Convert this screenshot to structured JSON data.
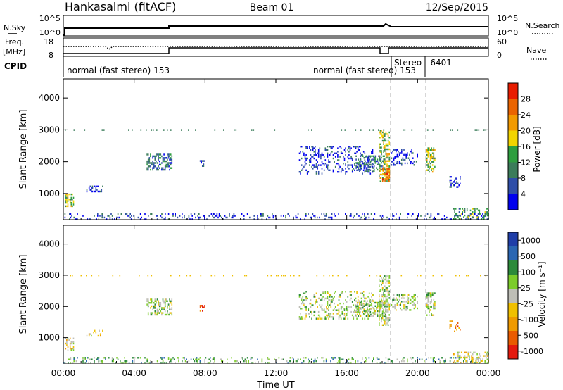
{
  "header": {
    "station": "Hankasalmi (fitACF)",
    "beam": "Beam 01",
    "date": "12/Sep/2015"
  },
  "status_panels": {
    "nsky_label": "N.Sky",
    "nsearch_label": "N.Search",
    "noise_ticks": [
      "10^5",
      "10^0"
    ],
    "freq_label_1": "Freq.",
    "freq_label_2": "[MHz]",
    "freq_ticks": [
      "18",
      "8"
    ],
    "nave_label": "Nave",
    "nave_ticks": [
      "60",
      "0"
    ],
    "cpid_label": "CPID",
    "cpid_segments": [
      {
        "text": "normal (fast stereo) 153"
      },
      {
        "text": "normal (fast stereo) 153"
      },
      {
        "text": "Stereo"
      },
      {
        "text": "-6401"
      }
    ]
  },
  "colors": {
    "power": [
      "#0000ee",
      "#2f4ea8",
      "#3b7c5a",
      "#2e9e3f",
      "#f2d400",
      "#f29a00",
      "#ea6400",
      "#e81c00"
    ],
    "velocity": [
      "#1f3ea8",
      "#2a66b2",
      "#2c8a3a",
      "#7ccc2a",
      "#bebeb6",
      "#f0c000",
      "#ef9a00",
      "#e95b00",
      "#e41a0e"
    ],
    "guide_lines": "#bbbbbb"
  },
  "chart_data": [
    {
      "type": "heatmap",
      "name": "power",
      "ylabel": "Slant Range [km]",
      "xlabel": "",
      "yticks": [
        "1000",
        "2000",
        "3000",
        "4000"
      ],
      "colorbar_label": "Power [dB]",
      "colorbar_ticks": [
        "4",
        "8",
        "12",
        "16",
        "20",
        "24",
        "28"
      ],
      "ylim": [
        180,
        4600
      ],
      "xlim": [
        0,
        24
      ],
      "patches": [
        {
          "t0": 0.0,
          "t1": 24.0,
          "r0": 180,
          "r1": 380,
          "level": 1,
          "density": 0.18
        },
        {
          "t0": 0.1,
          "t1": 0.6,
          "r0": 600,
          "r1": 1000,
          "level": 4,
          "density": 0.55
        },
        {
          "t0": 1.3,
          "t1": 2.2,
          "r0": 1050,
          "r1": 1250,
          "level": 1,
          "density": 0.4
        },
        {
          "t0": 4.7,
          "t1": 6.1,
          "r0": 1750,
          "r1": 2250,
          "level": 2,
          "density": 0.45
        },
        {
          "t0": 7.7,
          "t1": 8.0,
          "r0": 1850,
          "r1": 2050,
          "level": 2,
          "density": 0.4
        },
        {
          "t0": 13.3,
          "t1": 17.5,
          "r0": 1600,
          "r1": 2500,
          "level": 1,
          "density": 0.25
        },
        {
          "t0": 16.5,
          "t1": 18.2,
          "r0": 1700,
          "r1": 2200,
          "level": 2,
          "density": 0.4
        },
        {
          "t0": 17.8,
          "t1": 18.4,
          "r0": 1400,
          "r1": 3000,
          "level": 4,
          "density": 0.5
        },
        {
          "t0": 18.0,
          "t1": 18.4,
          "r0": 1400,
          "r1": 1800,
          "level": 6,
          "density": 0.65
        },
        {
          "t0": 18.5,
          "t1": 20.0,
          "r0": 1900,
          "r1": 2400,
          "level": 1,
          "density": 0.35
        },
        {
          "t0": 20.5,
          "t1": 21.0,
          "r0": 1700,
          "r1": 2450,
          "level": 4,
          "density": 0.5
        },
        {
          "t0": 21.8,
          "t1": 22.4,
          "r0": 1200,
          "r1": 1550,
          "level": 1,
          "density": 0.35
        },
        {
          "t0": 22.0,
          "t1": 24.0,
          "r0": 180,
          "r1": 550,
          "level": 3,
          "density": 0.3
        }
      ],
      "dotted_line": {
        "r": 3000,
        "level": 2,
        "density": 0.05
      }
    },
    {
      "type": "heatmap",
      "name": "velocity",
      "ylabel": "Slant Range [km]",
      "xlabel": "Time UT",
      "yticks": [
        "1000",
        "2000",
        "3000",
        "4000"
      ],
      "xticks": [
        "00:00",
        "04:00",
        "08:00",
        "12:00",
        "16:00",
        "20:00",
        "00:00"
      ],
      "xtick_hours": [
        0,
        4,
        8,
        12,
        16,
        20,
        24
      ],
      "colorbar_label": "Velocity [m s⁻¹]",
      "colorbar_ticks": [
        "1000",
        "500",
        "100",
        "25",
        "-25",
        "-100",
        "-500",
        "-1000"
      ],
      "ylim": [
        180,
        4600
      ],
      "xlim": [
        0,
        24
      ],
      "patches": [
        {
          "t0": 0.0,
          "t1": 24.0,
          "r0": 180,
          "r1": 380,
          "level": 3,
          "density": 0.22
        },
        {
          "t0": 0.1,
          "t1": 0.6,
          "r0": 600,
          "r1": 1000,
          "level": 5,
          "density": 0.5
        },
        {
          "t0": 1.3,
          "t1": 2.2,
          "r0": 1050,
          "r1": 1250,
          "level": 5,
          "density": 0.35
        },
        {
          "t0": 4.7,
          "t1": 6.1,
          "r0": 1750,
          "r1": 2250,
          "level": 4,
          "density": 0.45
        },
        {
          "t0": 7.7,
          "t1": 8.0,
          "r0": 1850,
          "r1": 2050,
          "level": 8,
          "density": 0.4
        },
        {
          "t0": 13.3,
          "t1": 17.5,
          "r0": 1600,
          "r1": 2500,
          "level": 4,
          "density": 0.25
        },
        {
          "t0": 16.5,
          "t1": 18.2,
          "r0": 1700,
          "r1": 2200,
          "level": 4,
          "density": 0.45
        },
        {
          "t0": 17.8,
          "t1": 18.4,
          "r0": 1400,
          "r1": 3000,
          "level": 4,
          "density": 0.55
        },
        {
          "t0": 18.5,
          "t1": 20.0,
          "r0": 1900,
          "r1": 2400,
          "level": 4,
          "density": 0.35
        },
        {
          "t0": 20.5,
          "t1": 21.0,
          "r0": 1700,
          "r1": 2450,
          "level": 4,
          "density": 0.5
        },
        {
          "t0": 21.8,
          "t1": 22.4,
          "r0": 1200,
          "r1": 1550,
          "level": 7,
          "density": 0.3
        },
        {
          "t0": 22.0,
          "t1": 24.0,
          "r0": 180,
          "r1": 550,
          "level": 5,
          "density": 0.3
        }
      ],
      "dotted_line": {
        "r": 3000,
        "level": 5,
        "density": 0.05
      }
    }
  ]
}
